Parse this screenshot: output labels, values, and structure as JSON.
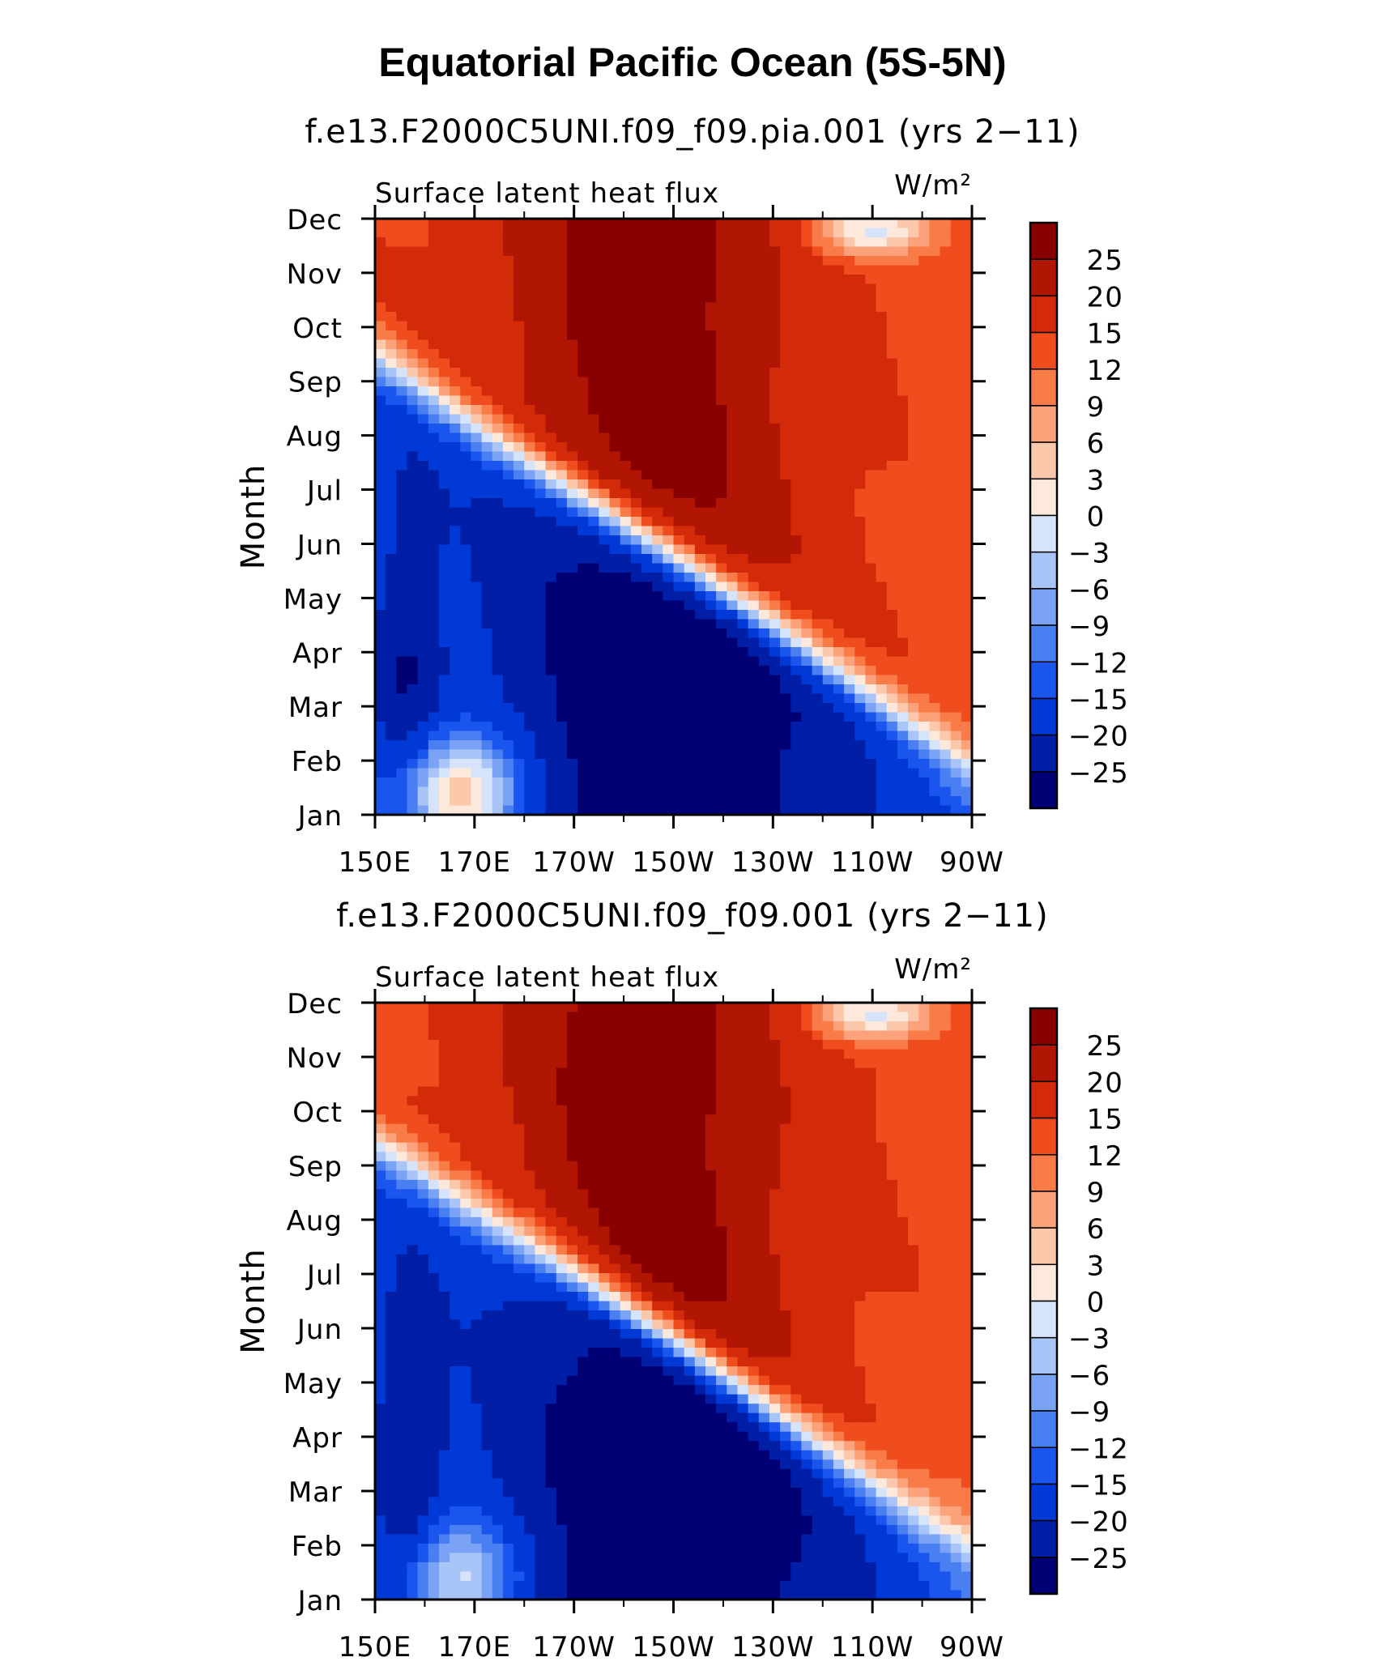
{
  "main_title": "Equatorial Pacific Ocean (5S-5N)",
  "chart_data": [
    {
      "type": "heatmap",
      "title": "f.e13.F2000C5UNI.f09_f09.pia.001 (yrs 2−11)",
      "left_label": "Surface latent heat flux",
      "units": "W/m²",
      "xlabel": "",
      "ylabel": "Month",
      "x_ticks": [
        "150E",
        "170E",
        "170W",
        "150W",
        "130W",
        "110W",
        "90W"
      ],
      "y_ticks": [
        "Jan",
        "Feb",
        "Mar",
        "Apr",
        "May",
        "Jun",
        "Jul",
        "Aug",
        "Sep",
        "Oct",
        "Nov",
        "Dec"
      ],
      "colorbar_labels": [
        "25",
        "20",
        "15",
        "12",
        "9",
        "6",
        "3",
        "0",
        "−3",
        "−6",
        "−9",
        "−12",
        "−15",
        "−20",
        "−25"
      ],
      "levels": [
        -25,
        -20,
        -15,
        -12,
        -9,
        -6,
        -3,
        0,
        3,
        6,
        9,
        12,
        15,
        20,
        25
      ],
      "colors": [
        "#000074",
        "#001fa6",
        "#0039d6",
        "#1a55ee",
        "#4a7ff2",
        "#7ba3f5",
        "#a9c5f7",
        "#d5e4fb",
        "#fde8dc",
        "#fcc8ac",
        "#fba27a",
        "#f97b48",
        "#f04d1e",
        "#d32a0a",
        "#b01603",
        "#880000"
      ]
    },
    {
      "type": "heatmap",
      "title": "f.e13.F2000C5UNI.f09_f09.001 (yrs 2−11)",
      "left_label": "Surface latent heat flux",
      "units": "W/m²",
      "xlabel": "",
      "ylabel": "Month",
      "x_ticks": [
        "150E",
        "170E",
        "170W",
        "150W",
        "130W",
        "110W",
        "90W"
      ],
      "y_ticks": [
        "Jan",
        "Feb",
        "Mar",
        "Apr",
        "May",
        "Jun",
        "Jul",
        "Aug",
        "Sep",
        "Oct",
        "Nov",
        "Dec"
      ],
      "colorbar_labels": [
        "25",
        "20",
        "15",
        "12",
        "9",
        "6",
        "3",
        "0",
        "−3",
        "−6",
        "−9",
        "−12",
        "−15",
        "−20",
        "−25"
      ],
      "levels": [
        -25,
        -20,
        -15,
        -12,
        -9,
        -6,
        -3,
        0,
        3,
        6,
        9,
        12,
        15,
        20,
        25
      ],
      "colors": [
        "#000074",
        "#001fa6",
        "#0039d6",
        "#1a55ee",
        "#4a7ff2",
        "#7ba3f5",
        "#a9c5f7",
        "#d5e4fb",
        "#fde8dc",
        "#fcc8ac",
        "#fba27a",
        "#f97b48",
        "#f04d1e",
        "#d32a0a",
        "#b01603",
        "#880000"
      ]
    }
  ]
}
